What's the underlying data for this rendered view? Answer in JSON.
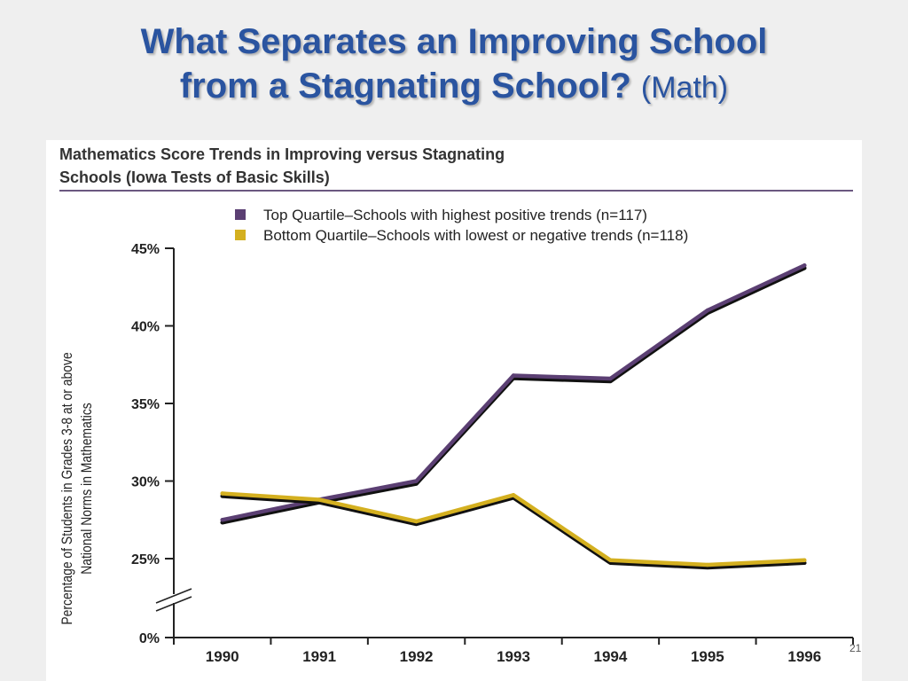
{
  "slide": {
    "title_line1": "What Separates an Improving School",
    "title_line2_bold": "from a Stagnating School?",
    "title_line2_normal": "(Math)",
    "page_number": "21"
  },
  "chart_data": {
    "type": "line",
    "title": "Mathematics Score Trends in Improving versus Stagnating Schools (Iowa Tests of Basic Skills)",
    "title_lines": [
      "Mathematics Score Trends in Improving versus Stagnating",
      "Schools (Iowa Tests of Basic Skills)"
    ],
    "ylabel_lines": [
      "Percentage of Students in Grades 3-8 at or above",
      "National Norms in Mathematics"
    ],
    "xlabel": "",
    "categories": [
      "1990",
      "1991",
      "1992",
      "1993",
      "1994",
      "1995",
      "1996"
    ],
    "y_ticks": [
      0,
      25,
      30,
      35,
      40,
      45
    ],
    "y_tick_labels": [
      "0%",
      "25%",
      "30%",
      "35%",
      "40%",
      "45%"
    ],
    "ylim": [
      0,
      45
    ],
    "axis_break": "between 0% and 25%",
    "legend_position": "top",
    "grid": false,
    "series": [
      {
        "name": "Top Quartile–Schools with highest positive trends (n=117)",
        "color": "#5b3f73",
        "values": [
          27.5,
          28.8,
          30.0,
          36.8,
          36.6,
          41.0,
          43.9
        ]
      },
      {
        "name": "Bottom Quartile–Schools with lowest or negative trends (n=118)",
        "color": "#d4b020",
        "values": [
          29.2,
          28.8,
          27.4,
          29.1,
          24.9,
          24.6,
          24.9
        ]
      }
    ]
  }
}
